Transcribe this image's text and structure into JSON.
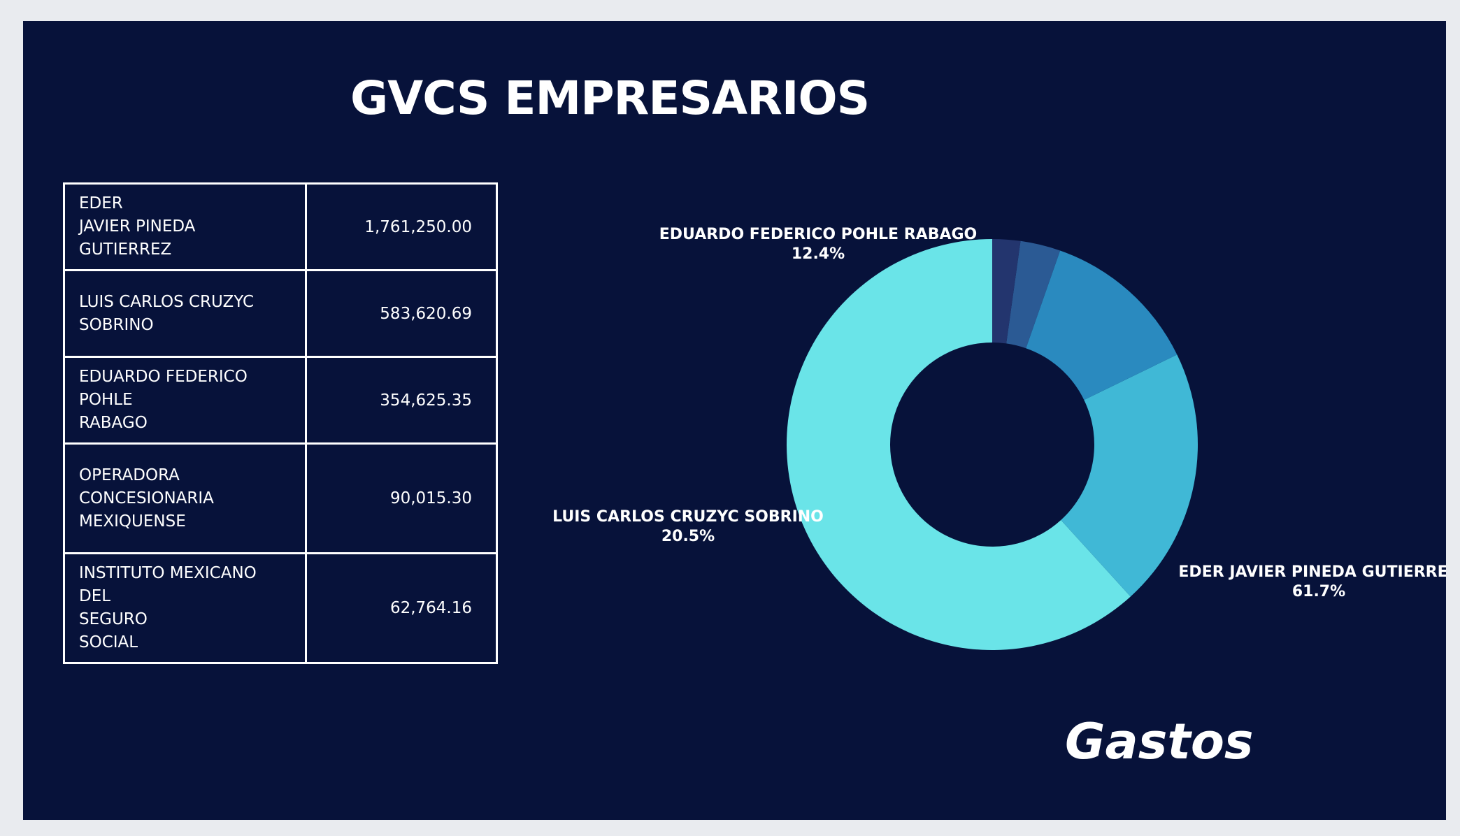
{
  "title": "GVCS EMPRESARIOS",
  "subtitle": "Gastos",
  "table": {
    "rows": [
      {
        "name": "EDER\n   JAVIER PINEDA GUTIERREZ",
        "amount": "1,761,250.00"
      },
      {
        "name": "LUIS CARLOS CRUZYC\nSOBRINO",
        "amount": "583,620.69"
      },
      {
        "name": "EDUARDO FEDERICO POHLE\nRABAGO",
        "amount": "354,625.35"
      },
      {
        "name": "OPERADORA\nCONCESIONARIA\n   MEXIQUENSE",
        "amount": "90,015.30"
      },
      {
        "name": "INSTITUTO MEXICANO DEL\nSEGURO\n   SOCIAL",
        "amount": "62,764.16"
      }
    ]
  },
  "chart_data": {
    "type": "pie",
    "donut": true,
    "title": "",
    "categories": [
      "EDER JAVIER PINEDA GUTIERREZ",
      "LUIS CARLOS CRUZYC SOBRINO",
      "EDUARDO FEDERICO POHLE RABAGO",
      "OPERADORA CONCESIONARIA MEXIQUENSE",
      "INSTITUTO MEXICANO DEL SEGURO SOCIAL"
    ],
    "values": [
      1761250.0,
      583620.69,
      354625.35,
      90015.3,
      62764.16
    ],
    "data_labels": [
      {
        "name": "EDER JAVIER PINEDA GUTIERREZ",
        "percent": "61.7%"
      },
      {
        "name": "LUIS CARLOS CRUZYC SOBRINO",
        "percent": "20.5%"
      },
      {
        "name": "EDUARDO FEDERICO POHLE RABAGO",
        "percent": "12.4%"
      },
      {
        "name": "",
        "percent": ""
      },
      {
        "name": "",
        "percent": ""
      }
    ],
    "colors": [
      "#6ae4e8",
      "#40b8d6",
      "#2a8abf",
      "#2b5a94",
      "#23356e"
    ],
    "background": "#07123a"
  }
}
